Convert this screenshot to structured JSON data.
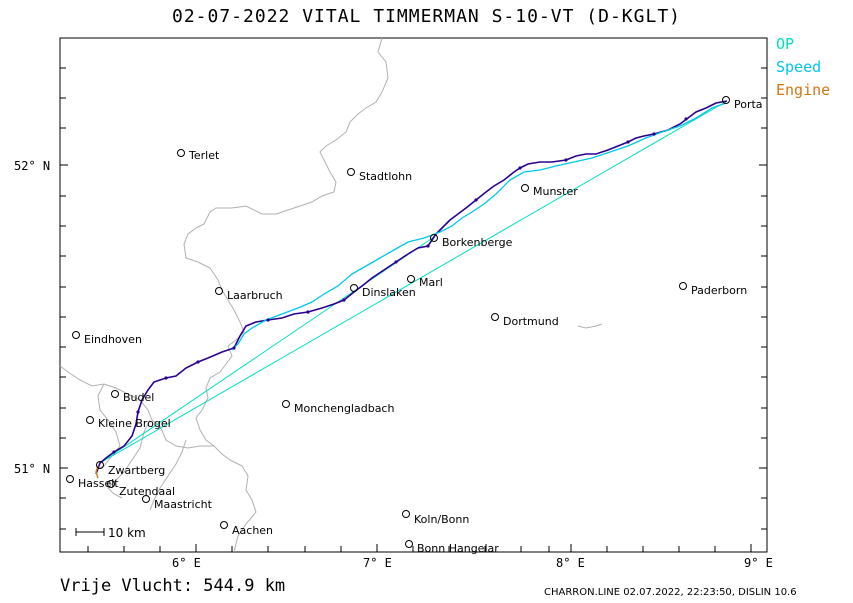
{
  "title": "02-07-2022   VITAL TIMMERMAN   S-10-VT (D-KGLT)",
  "legend": {
    "op": {
      "label": "OP",
      "color": "#00e0c0"
    },
    "speed": {
      "label": "Speed",
      "color": "#00c8e8"
    },
    "engine": {
      "label": "Engine",
      "color": "#d07810"
    }
  },
  "track_color": "#2a0090",
  "distance_text": "Vrije Vlucht:  544.9 km",
  "footer_text": "CHARRON.LINE 02.07.2022, 22:23:50, DISLIN 10.6",
  "scale_label": "10 km",
  "axes": {
    "lat_labels": [
      "52° N",
      "51° N"
    ],
    "lon_labels": [
      "6° E",
      "7° E",
      "8° E",
      "9° E"
    ]
  },
  "places": [
    {
      "name": "Terlet",
      "icon": "circle-marker"
    },
    {
      "name": "Stadtlohn",
      "icon": "circle-marker"
    },
    {
      "name": "Munster",
      "icon": "circle-marker"
    },
    {
      "name": "Porta",
      "icon": "circle-marker"
    },
    {
      "name": "Borkenberge",
      "icon": "circle-marker"
    },
    {
      "name": "Laarbruch",
      "icon": "circle-marker"
    },
    {
      "name": "Marl",
      "icon": "circle-marker"
    },
    {
      "name": "Dinslaken",
      "icon": "circle-marker"
    },
    {
      "name": "Paderborn",
      "icon": "circle-marker"
    },
    {
      "name": "Eindhoven",
      "icon": "circle-marker"
    },
    {
      "name": "Dortmund",
      "icon": "circle-marker"
    },
    {
      "name": "Budel",
      "icon": "circle-marker"
    },
    {
      "name": "Monchengladbach",
      "icon": "circle-marker"
    },
    {
      "name": "Kleine Brogel",
      "icon": "circle-marker"
    },
    {
      "name": "Zwartberg",
      "icon": "circle-marker"
    },
    {
      "name": "Hasselt",
      "icon": "circle-marker"
    },
    {
      "name": "Zutendaal",
      "icon": "circle-marker"
    },
    {
      "name": "Maastricht",
      "icon": "circle-marker"
    },
    {
      "name": "Aachen",
      "icon": "circle-marker"
    },
    {
      "name": "Koln/Bonn",
      "icon": "circle-marker"
    },
    {
      "name": "Bonn Hangelar",
      "icon": "circle-marker"
    }
  ]
}
